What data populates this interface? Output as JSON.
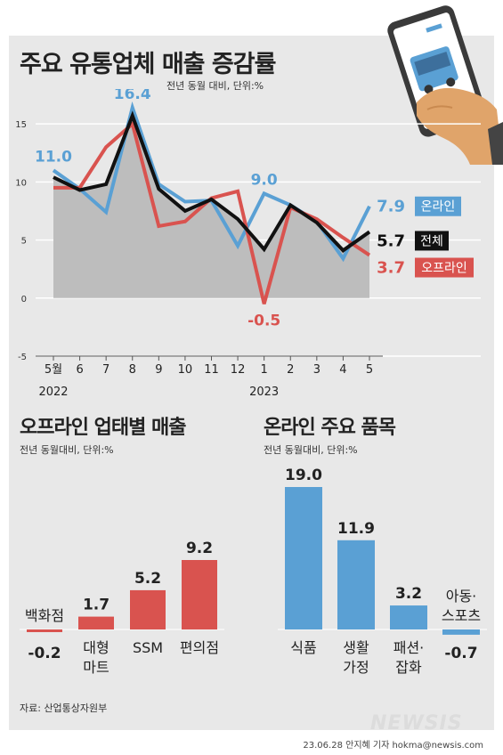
{
  "title": "주요 유통업체 매출 증감률",
  "subtitle": "전년 동월 대비, 단위:%",
  "credit": "23.06.28 안지혜 기자 hokma@newsis.com",
  "source": "자료: 산업통상자원부",
  "logo": "NEWSIS",
  "colors": {
    "online": "#5aa0d4",
    "offline": "#d9534f",
    "total": "#111111",
    "area": "#bdbdbd",
    "bar_online": "#5aa0d4",
    "bar_offline": "#d9534f"
  },
  "icon": "smartphone-delivery-truck-icon",
  "chart_data": [
    {
      "type": "line",
      "x": [
        "5월",
        "6",
        "7",
        "8",
        "9",
        "10",
        "11",
        "12",
        "1",
        "2",
        "3",
        "4",
        "5"
      ],
      "year_labels": [
        {
          "after": "5월",
          "text": "2022"
        },
        {
          "after": "1",
          "text": "2023"
        }
      ],
      "ylim": [
        -5,
        18
      ],
      "yticks": [
        -5,
        0,
        5,
        10,
        15
      ],
      "series": [
        {
          "name": "온라인",
          "key": "online",
          "values": [
            11.0,
            9.4,
            7.4,
            16.4,
            9.8,
            8.3,
            8.4,
            4.5,
            9.0,
            8.0,
            6.6,
            3.4,
            7.9
          ]
        },
        {
          "name": "오프라인",
          "key": "offline",
          "values": [
            9.5,
            9.5,
            13.0,
            15.0,
            6.2,
            6.6,
            8.6,
            9.2,
            -0.5,
            7.8,
            6.8,
            5.2,
            3.7
          ]
        },
        {
          "name": "전체",
          "key": "total",
          "values": [
            10.4,
            9.3,
            9.8,
            15.7,
            9.4,
            7.5,
            8.5,
            6.8,
            4.2,
            8.0,
            6.5,
            4.1,
            5.7
          ]
        }
      ],
      "point_labels": [
        {
          "series": "online",
          "index": 0,
          "text": "11.0"
        },
        {
          "series": "online",
          "index": 3,
          "text": "16.4"
        },
        {
          "series": "online",
          "index": 8,
          "text": "9.0"
        },
        {
          "series": "offline",
          "index": 8,
          "text": "-0.5"
        }
      ],
      "end_labels": [
        {
          "series": "online",
          "value": "7.9",
          "name": "온라인"
        },
        {
          "series": "total",
          "value": "5.7",
          "name": "전체"
        },
        {
          "series": "offline",
          "value": "3.7",
          "name": "오프라인"
        }
      ]
    },
    {
      "type": "bar",
      "title": "오프라인 업태별 매출",
      "subtitle": "전년 동월대비, 단위:%",
      "categories": [
        "백화점",
        "대형\n마트",
        "SSM",
        "편의점"
      ],
      "values": [
        -0.2,
        1.7,
        5.2,
        9.2
      ],
      "labels": [
        "-0.2",
        "1.7",
        "5.2",
        "9.2"
      ]
    },
    {
      "type": "bar",
      "title": "온라인 주요 품목",
      "subtitle": "전년 동월대비, 단위:%",
      "categories": [
        "식품",
        "생활\n가정",
        "패션·\n잡화",
        "아동·\n스포츠"
      ],
      "values": [
        19.0,
        11.9,
        3.2,
        -0.7
      ],
      "labels": [
        "19.0",
        "11.9",
        "3.2",
        "-0.7"
      ]
    }
  ]
}
